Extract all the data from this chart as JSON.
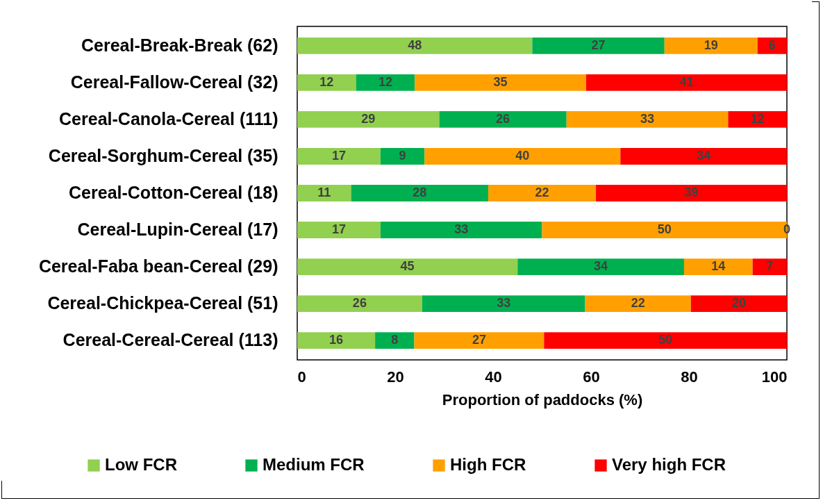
{
  "chart_data": {
    "type": "bar",
    "orientation": "horizontal",
    "stacked": true,
    "xlabel": "Proportion of paddocks (%)",
    "categories": [
      "Cereal-Break-Break (62)",
      "Cereal-Fallow-Cereal (32)",
      "Cereal-Canola-Cereal (111)",
      "Cereal-Sorghum-Cereal (35)",
      "Cereal-Cotton-Cereal (18)",
      "Cereal-Lupin-Cereal (17)",
      "Cereal-Faba bean-Cereal (29)",
      "Cereal-Chickpea-Cereal (51)",
      "Cereal-Cereal-Cereal (113)"
    ],
    "series": [
      {
        "name": "Low FCR",
        "color": "#92d050",
        "values": [
          48,
          12,
          29,
          17,
          11,
          17,
          45,
          25.5,
          15.9
        ],
        "value_labels": [
          "48",
          "12",
          "29",
          "17",
          "11",
          "17",
          "45",
          "26",
          "16"
        ]
      },
      {
        "name": "Medium FCR",
        "color": "#00b050",
        "values": [
          27,
          12,
          26,
          9,
          28,
          33,
          34,
          33.3,
          8
        ],
        "value_labels": [
          "27",
          "12",
          "26",
          "9",
          "28",
          "33",
          "34",
          "33",
          "8"
        ]
      },
      {
        "name": "High FCR",
        "color": "#ffa000",
        "values": [
          19,
          35,
          33,
          40,
          22,
          50,
          14,
          21.6,
          26.5
        ],
        "value_labels": [
          "19",
          "35",
          "33",
          "40",
          "22",
          "50",
          "14",
          "22",
          "27"
        ]
      },
      {
        "name": "Very high FCR",
        "color": "#ff0000",
        "values": [
          6,
          41,
          12,
          34,
          39,
          0,
          7,
          19.6,
          49.6
        ],
        "value_labels": [
          "6",
          "41",
          "12",
          "34",
          "39",
          "0",
          "7",
          "20",
          "50"
        ]
      }
    ],
    "xlim": [
      0,
      100
    ],
    "xticks": [
      0,
      20,
      40,
      60,
      80,
      100
    ],
    "grid": false,
    "legend": "bottom"
  }
}
